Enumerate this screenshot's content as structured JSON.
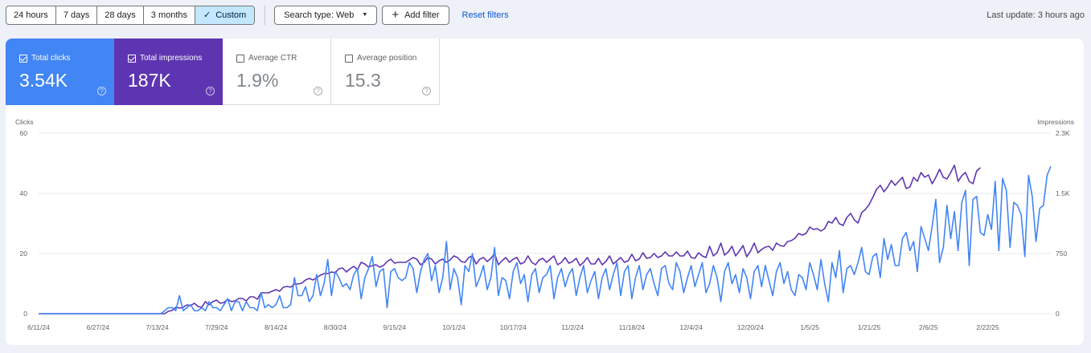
{
  "toolbar": {
    "ranges": [
      "24 hours",
      "7 days",
      "28 days",
      "3 months"
    ],
    "custom_label": "Custom",
    "search_type": "Search type: Web",
    "add_filter": "Add filter",
    "reset": "Reset filters",
    "last_update": "Last update: 3 hours ago"
  },
  "metrics": {
    "clicks": {
      "label": "Total clicks",
      "value": "3.54K",
      "checked": true
    },
    "impressions": {
      "label": "Total impressions",
      "value": "187K",
      "checked": true
    },
    "ctr": {
      "label": "Average CTR",
      "value": "1.9%",
      "checked": false
    },
    "position": {
      "label": "Average position",
      "value": "15.3",
      "checked": false
    }
  },
  "colors": {
    "clicks": "#4285f4",
    "impressions": "#5e35b1",
    "grid": "#e8eaed"
  },
  "icons": {
    "check": "check-icon",
    "caret": "caret-down-icon",
    "plus": "plus-icon",
    "help": "help-icon"
  },
  "chart_data": {
    "type": "line",
    "ylabel_left": "Clicks",
    "ylabel_right": "Impressions",
    "ylim_left": [
      0,
      60
    ],
    "ylim_right": [
      0,
      2250
    ],
    "yticks_left": [
      "0",
      "20",
      "40",
      "60"
    ],
    "yticks_right": [
      "0",
      "750",
      "1.5K",
      "2.3K"
    ],
    "xticks": [
      "6/11/24",
      "6/27/24",
      "7/13/24",
      "7/29/24",
      "8/14/24",
      "8/30/24",
      "9/15/24",
      "10/1/24",
      "10/17/24",
      "11/2/24",
      "11/18/24",
      "12/4/24",
      "12/20/24",
      "1/5/25",
      "1/21/25",
      "2/6/25",
      "2/22/25"
    ],
    "x_start": "6/11/24",
    "day_count": 265,
    "series": [
      {
        "name": "Clicks",
        "axis": "left",
        "color": "#4285f4",
        "values": [
          0,
          0,
          0,
          0,
          0,
          0,
          0,
          0,
          0,
          0,
          0,
          0,
          0,
          0,
          0,
          0,
          0,
          0,
          0,
          0,
          0,
          0,
          0,
          0,
          0,
          0,
          0,
          0,
          0,
          0,
          0,
          0,
          0,
          0,
          1,
          2,
          2,
          1,
          6,
          1,
          2,
          3,
          1,
          1,
          2,
          1,
          4,
          2,
          2,
          1,
          3,
          5,
          1,
          4,
          4,
          1,
          4,
          2,
          2,
          1,
          7,
          2,
          3,
          2,
          3,
          6,
          2,
          2,
          3,
          12,
          6,
          6,
          9,
          4,
          6,
          13,
          6,
          10,
          18,
          6,
          14,
          12,
          9,
          10,
          8,
          13,
          15,
          5,
          12,
          15,
          19,
          9,
          14,
          15,
          2,
          14,
          15,
          12,
          11,
          12,
          17,
          15,
          7,
          14,
          18,
          20,
          11,
          16,
          7,
          12,
          24,
          8,
          15,
          12,
          3,
          16,
          14,
          20,
          9,
          12,
          16,
          8,
          12,
          22,
          6,
          12,
          11,
          5,
          14,
          17,
          10,
          13,
          4,
          13,
          15,
          7,
          12,
          13,
          16,
          5,
          12,
          15,
          9,
          13,
          15,
          6,
          12,
          16,
          7,
          11,
          14,
          5,
          12,
          15,
          8,
          13,
          17,
          6,
          14,
          16,
          5,
          12,
          16,
          8,
          13,
          15,
          10,
          6,
          15,
          16,
          10,
          8,
          17,
          14,
          7,
          12,
          16,
          9,
          13,
          17,
          7,
          10,
          16,
          12,
          4,
          14,
          17,
          10,
          13,
          7,
          15,
          12,
          5,
          14,
          16,
          9,
          16,
          11,
          6,
          14,
          17,
          10,
          14,
          8,
          6,
          13,
          12,
          8,
          17,
          13,
          8,
          18,
          10,
          4,
          17,
          12,
          21,
          7,
          15,
          16,
          13,
          17,
          22,
          14,
          13,
          19,
          20,
          12,
          25,
          18,
          23,
          16,
          16,
          25,
          27,
          21,
          24,
          14,
          29,
          25,
          21,
          29,
          38,
          17,
          22,
          36,
          25,
          34,
          21,
          37,
          41,
          16,
          38,
          39,
          27,
          26,
          33,
          28,
          44,
          21,
          45,
          41,
          22,
          37,
          36,
          33,
          19,
          46,
          39,
          24,
          35,
          36,
          46,
          49
        ]
      },
      {
        "name": "Impressions",
        "axis": "right",
        "color": "#5e35b1",
        "values": [
          0,
          0,
          0,
          0,
          0,
          0,
          0,
          0,
          0,
          0,
          0,
          0,
          0,
          0,
          0,
          0,
          0,
          0,
          0,
          0,
          0,
          0,
          0,
          0,
          0,
          0,
          0,
          0,
          0,
          0,
          0,
          0,
          0,
          0,
          0,
          30,
          40,
          80,
          70,
          80,
          110,
          100,
          130,
          90,
          80,
          150,
          110,
          150,
          170,
          130,
          140,
          180,
          150,
          160,
          190,
          190,
          160,
          210,
          210,
          180,
          260,
          260,
          260,
          280,
          300,
          280,
          330,
          340,
          330,
          370,
          370,
          380,
          420,
          440,
          420,
          450,
          480,
          500,
          500,
          520,
          510,
          560,
          570,
          520,
          560,
          590,
          550,
          640,
          620,
          580,
          600,
          610,
          580,
          600,
          650,
          680,
          630,
          640,
          640,
          640,
          670,
          700,
          680,
          610,
          640,
          700,
          680,
          620,
          660,
          680,
          640,
          670,
          720,
          700,
          650,
          640,
          700,
          720,
          620,
          680,
          700,
          650,
          690,
          750,
          610,
          660,
          700,
          640,
          680,
          700,
          620,
          640,
          720,
          640,
          610,
          670,
          690,
          640,
          680,
          720,
          610,
          640,
          700,
          630,
          650,
          690,
          600,
          640,
          700,
          620,
          620,
          690,
          610,
          650,
          720,
          620,
          660,
          700,
          640,
          660,
          740,
          660,
          680,
          760,
          690,
          700,
          750,
          700,
          720,
          770,
          720,
          720,
          770,
          720,
          720,
          780,
          700,
          690,
          760,
          720,
          700,
          840,
          720,
          760,
          880,
          730,
          770,
          840,
          720,
          780,
          850,
          710,
          780,
          880,
          760,
          800,
          830,
          840,
          790,
          880,
          850,
          840,
          900,
          910,
          940,
          1000,
          980,
          1000,
          1080,
          1050,
          1060,
          1030,
          1060,
          1150,
          1130,
          1200,
          1120,
          1100,
          1200,
          1250,
          1170,
          1130,
          1260,
          1300,
          1360,
          1450,
          1550,
          1600,
          1520,
          1580,
          1660,
          1600,
          1650,
          1700,
          1560,
          1580,
          1700,
          1650,
          1760,
          1700,
          1730,
          1620,
          1700,
          1800,
          1700,
          1680,
          1760,
          1850,
          1650,
          1720,
          1760,
          1650,
          1620,
          1780,
          1820
        ]
      }
    ],
    "grid": true
  }
}
